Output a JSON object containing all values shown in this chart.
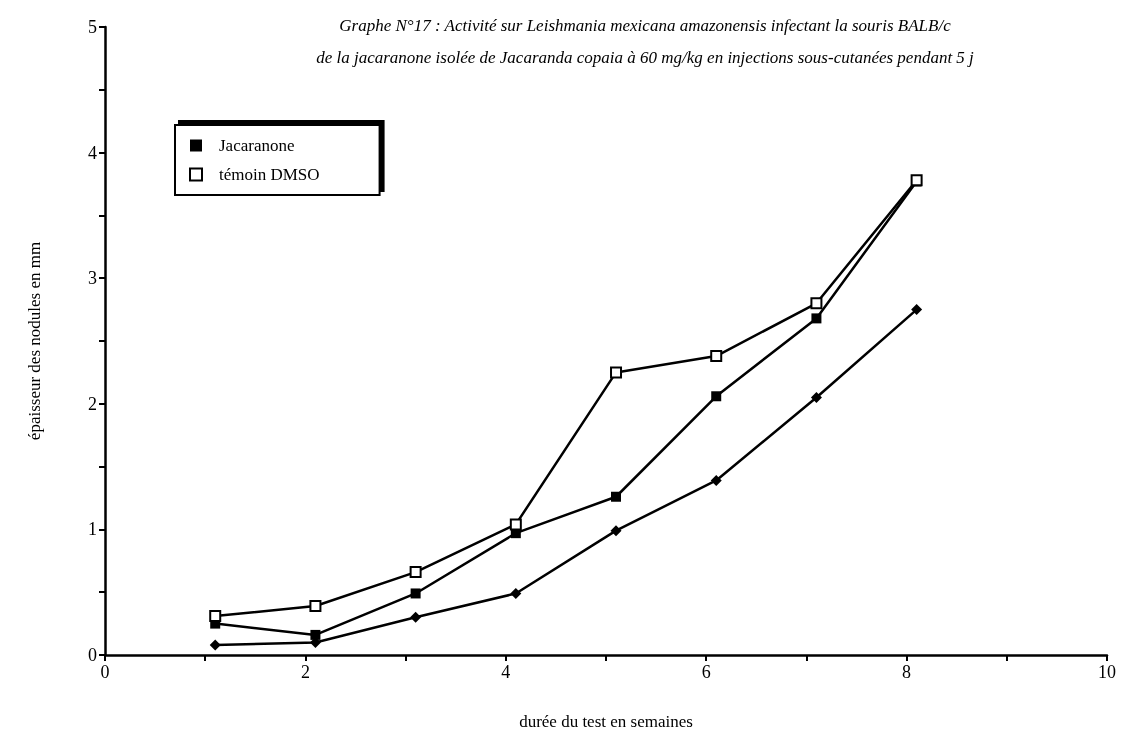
{
  "chart_data": {
    "type": "line",
    "title": "Graphe N°17 : Activité sur Leishmania mexicana amazonensis infectant la souris BALB/c\nde la jacaranone isolée de Jacaranda copaia à 60 mg/kg en injections sous-cutanées pendant 5 j",
    "xlabel": "durée du test en semaines",
    "ylabel": "épaisseur des nodules en mm",
    "x": [
      1.1,
      2.1,
      3.1,
      4.1,
      5.1,
      6.1,
      7.1,
      8.1
    ],
    "series": [
      {
        "name": "Jacaranone",
        "color": "#000000",
        "marker": "square",
        "values": [
          0.25,
          0.16,
          0.49,
          0.97,
          1.26,
          2.06,
          2.68,
          3.77
        ]
      },
      {
        "color": "#000000",
        "marker": "diamond",
        "values": [
          0.08,
          0.1,
          0.3,
          0.49,
          0.99,
          1.39,
          2.05,
          2.75
        ]
      },
      {
        "name": "témoin DMSO",
        "color": "#000000",
        "marker": "square",
        "values": [
          0.31,
          0.39,
          0.66,
          1.04,
          2.25,
          2.38,
          2.8,
          3.78
        ]
      }
    ],
    "xlim": [
      0,
      10
    ],
    "xticks": [
      0,
      {
        "value": 1,
        "label": null
      },
      2,
      {
        "value": 3,
        "label": null
      },
      4,
      {
        "value": 5,
        "label": null
      },
      6,
      {
        "value": 7,
        "label": null
      },
      8,
      {
        "value": 9,
        "label": null
      },
      10
    ],
    "ylim": [
      0,
      5
    ],
    "yticks": [
      0,
      {
        "value": 0.5,
        "label": null
      },
      1,
      {
        "value": 1.5,
        "label": null
      },
      2,
      {
        "value": 2.5,
        "label": null
      },
      3,
      {
        "value": 3.5,
        "label": null
      },
      4,
      {
        "value": 4.5,
        "label": null
      },
      5
    ],
    "legend": "top left",
    "grid": false,
    "line_style": "solid"
  }
}
